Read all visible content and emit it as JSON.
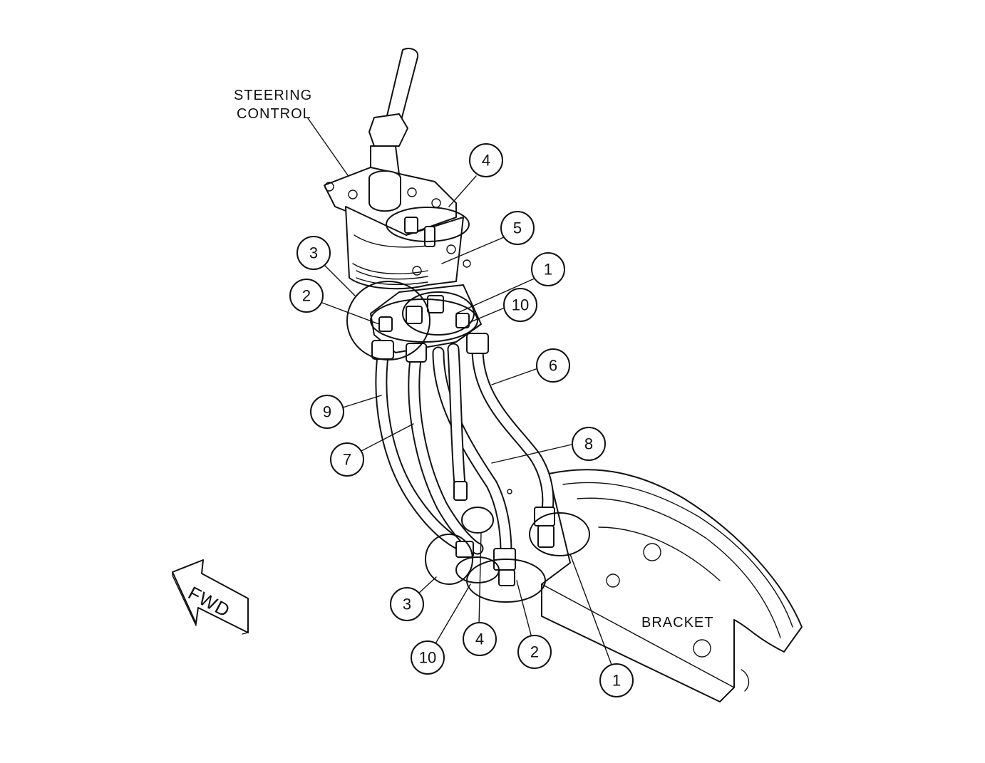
{
  "labels": {
    "steering_control_line1": "STEERING",
    "steering_control_line2": "CONTROL",
    "bracket": "BRACKET",
    "fwd": "FWD"
  },
  "callouts": {
    "c4_top": "4",
    "c5": "5",
    "c3_upper": "3",
    "c1_upper": "1",
    "c2_upper": "2",
    "c10_upper": "10",
    "c6": "6",
    "c9": "9",
    "c7": "7",
    "c8": "8",
    "c3_lower": "3",
    "c4_lower": "4",
    "c2_lower": "2",
    "c10_lower": "10",
    "c1_lower": "1"
  }
}
